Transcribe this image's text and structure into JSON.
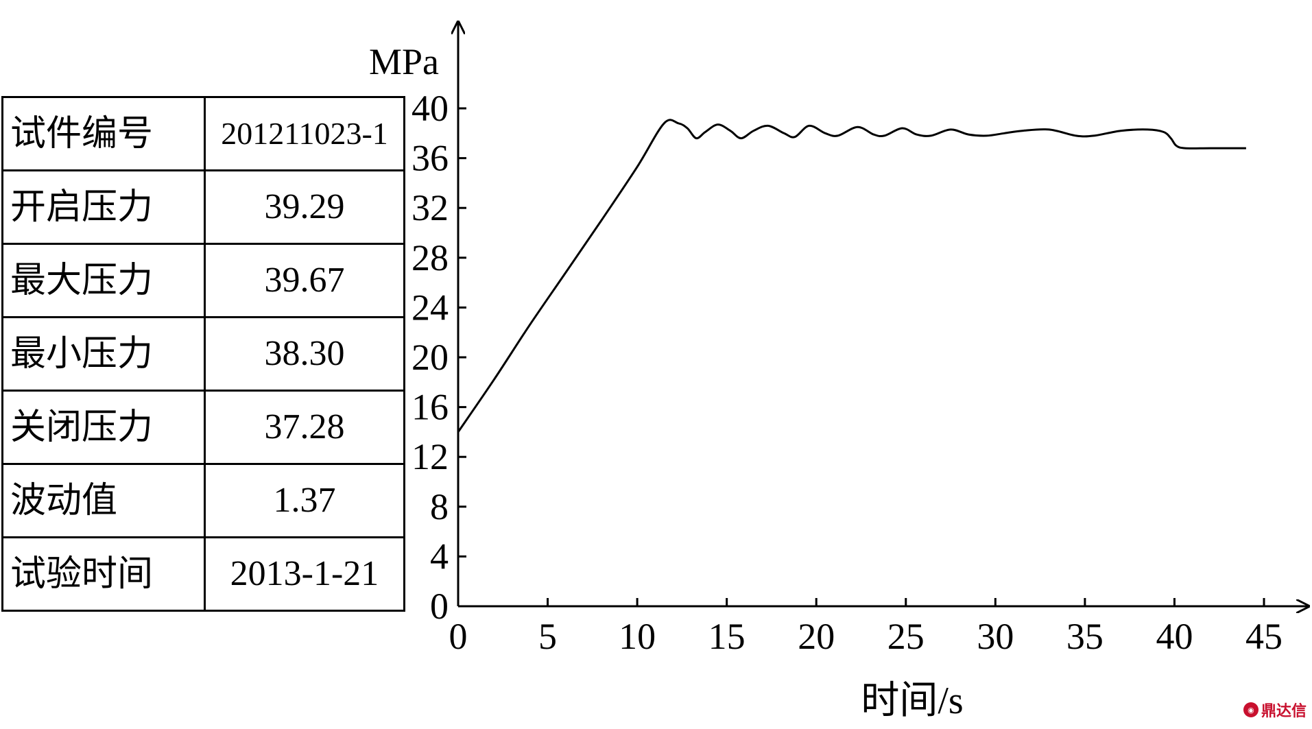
{
  "table": {
    "rows": [
      {
        "label": "试件编号",
        "value": "201211023-1"
      },
      {
        "label": "开启压力",
        "value": "39.29"
      },
      {
        "label": "最大压力",
        "value": "39.67"
      },
      {
        "label": "最小压力",
        "value": "38.30"
      },
      {
        "label": "关闭压力",
        "value": "37.28"
      },
      {
        "label": "波动值",
        "value": "1.37"
      },
      {
        "label": "试验时间",
        "value": "2013-1-21"
      }
    ]
  },
  "chart_data": {
    "type": "line",
    "xlabel": "时间/s",
    "ylabel": "MPa",
    "xlim": [
      0,
      45
    ],
    "ylim": [
      0,
      40
    ],
    "xticks": [
      0,
      5,
      10,
      15,
      20,
      25,
      30,
      35,
      40,
      45
    ],
    "yticks": [
      0,
      4,
      8,
      12,
      16,
      20,
      24,
      28,
      32,
      36,
      40
    ],
    "grid": false,
    "series": [
      {
        "x": [
          0,
          2,
          4,
          6,
          8,
          10,
          11.5,
          12.3,
          12.8,
          13.3,
          13.8,
          14.5,
          15.2,
          15.8,
          16.5,
          17.3,
          18.2,
          18.8,
          19.6,
          20.5,
          21.2,
          22.3,
          23.2,
          23.8,
          24.8,
          25.6,
          26.4,
          27.5,
          28.5,
          29.5,
          30.5,
          31.5,
          33,
          34.5,
          35.5,
          37,
          38.5,
          39.4,
          39.8,
          40.1,
          40.6,
          42,
          44
        ],
        "y": [
          14,
          18.2,
          22.6,
          26.8,
          31,
          35.3,
          38.8,
          38.8,
          38.4,
          37.6,
          38.1,
          38.7,
          38.2,
          37.6,
          38.2,
          38.6,
          38.0,
          37.7,
          38.6,
          38.0,
          37.8,
          38.5,
          37.9,
          37.8,
          38.4,
          37.9,
          37.8,
          38.3,
          37.9,
          37.8,
          38.0,
          38.2,
          38.3,
          37.8,
          37.8,
          38.2,
          38.3,
          38.1,
          37.6,
          37.0,
          36.8,
          36.8,
          36.8
        ]
      }
    ]
  },
  "watermark": {
    "text": "鼎达信"
  }
}
